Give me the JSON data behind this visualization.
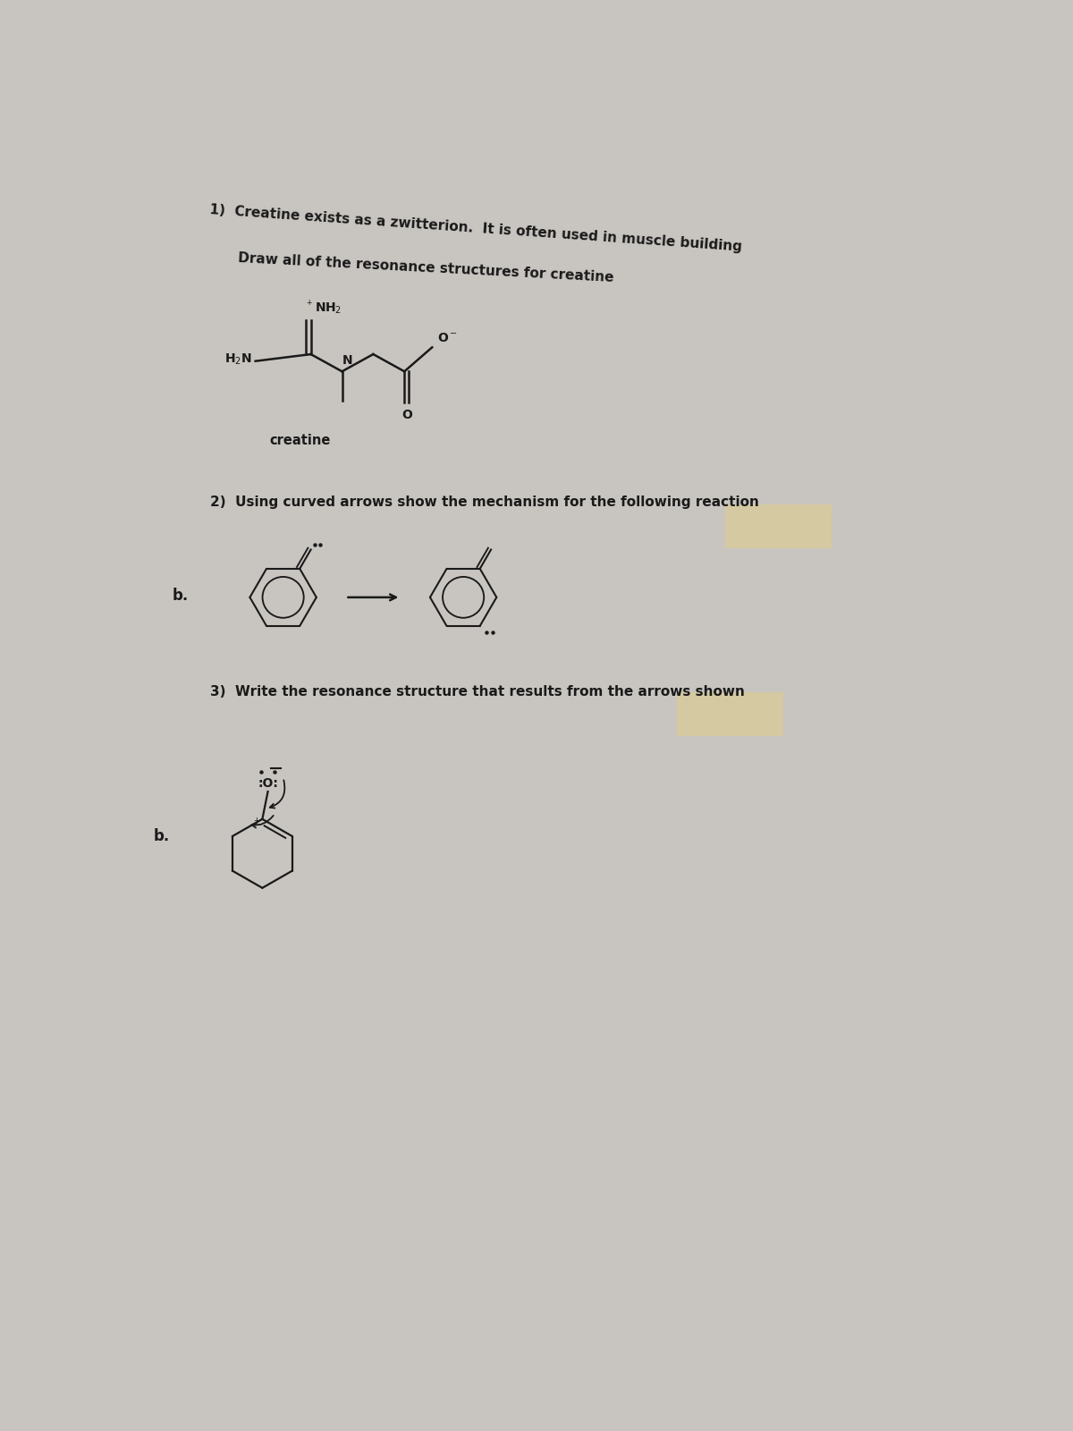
{
  "bg_color": "#c8c5c0",
  "text_color": "#1a1a1a",
  "title1": "1)  Creatine exists as a zwitterion.  It is often used in muscle building",
  "subtitle1": "Draw all of the resonance structures for creatine",
  "title2": "2)  Using curved arrows show the mechanism for the following reaction",
  "title3": "3)  Write the resonance structure that results from the arrows shown",
  "label_b2": "b.",
  "label_b3": "b.",
  "highlight_color": "#d4c9a0"
}
